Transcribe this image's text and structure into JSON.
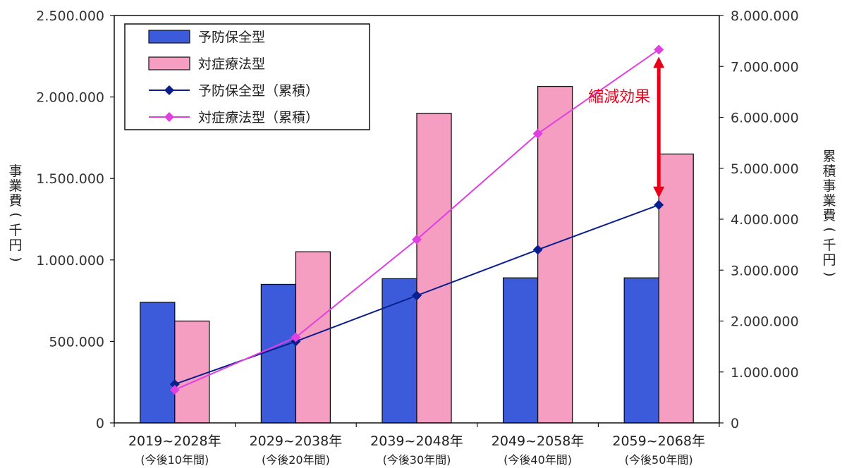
{
  "chart_data": {
    "type": "bar",
    "categories": [
      [
        "2019~2028年",
        "(今後10年間)"
      ],
      [
        "2029~2038年",
        "(今後20年間)"
      ],
      [
        "2039~2048年",
        "(今後30年間)"
      ],
      [
        "2049~2058年",
        "(今後40年間)"
      ],
      [
        "2059~2068年",
        "(今後50年間)"
      ]
    ],
    "y_left": {
      "label": "事業費(千円)",
      "ylim": [
        0,
        2500000
      ],
      "ticks": [
        0,
        500000,
        1000000,
        1500000,
        2000000,
        2500000
      ],
      "tick_labels": [
        "0",
        "500.000",
        "1.000.000",
        "1.500.000",
        "2.000.000",
        "2.500.000"
      ]
    },
    "y_right": {
      "label": "累積事業費(千円)",
      "ylim": [
        0,
        8000000
      ],
      "ticks": [
        0,
        1000000,
        2000000,
        3000000,
        4000000,
        5000000,
        6000000,
        7000000,
        8000000
      ],
      "tick_labels": [
        "0",
        "1.000.000",
        "2.000.000",
        "3.000.000",
        "4.000.000",
        "5.000.000",
        "6.000.000",
        "7.000.000",
        "8.000.000"
      ]
    },
    "series": [
      {
        "name": "予防保全型",
        "kind": "bar",
        "axis": "left",
        "color": "#3b5bdb",
        "values": [
          740000,
          850000,
          885000,
          890000,
          890000
        ]
      },
      {
        "name": "対症療法型",
        "kind": "bar",
        "axis": "left",
        "color": "#f59ec1",
        "values": [
          625000,
          1050000,
          1900000,
          2065000,
          1650000
        ]
      },
      {
        "name": "予防保全型（累積）",
        "kind": "line",
        "axis": "right",
        "color": "#0a1e8c",
        "marker": "diamond",
        "values": [
          760000,
          1600000,
          2500000,
          3400000,
          4280000
        ]
      },
      {
        "name": "対症療法型（累積）",
        "kind": "line",
        "axis": "right",
        "color": "#e040e0",
        "marker": "diamond",
        "values": [
          650000,
          1680000,
          3600000,
          5680000,
          7330000
        ]
      }
    ],
    "annotation": {
      "text": "縮減効果",
      "color": "#e8001a",
      "category_index": 4,
      "from": 4280000,
      "to": 7330000
    },
    "legend_position": "top-left",
    "grid": false
  }
}
